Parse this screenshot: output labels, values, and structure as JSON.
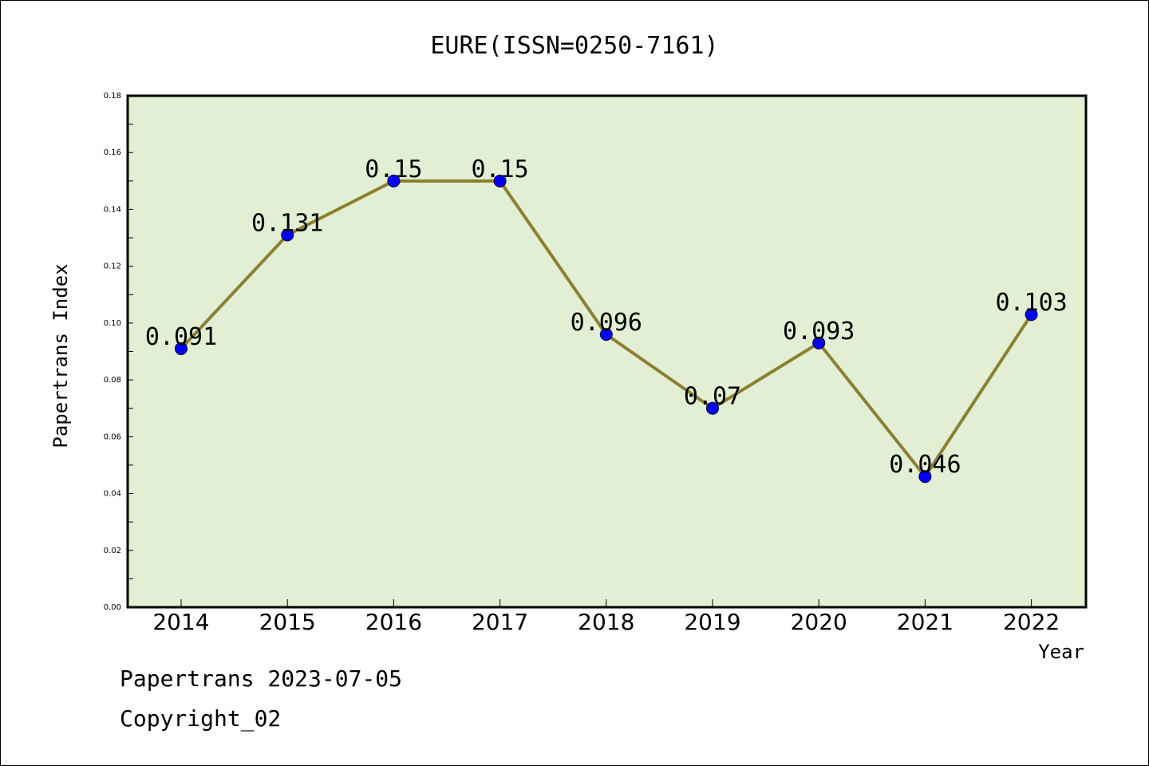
{
  "chart_data": {
    "type": "line",
    "title": "EURE(ISSN=0250-7161)",
    "xlabel": "Year",
    "ylabel": "Papertrans Index",
    "categories": [
      "2014",
      "2015",
      "2016",
      "2017",
      "2018",
      "2019",
      "2020",
      "2021",
      "2022"
    ],
    "values": [
      0.091,
      0.131,
      0.15,
      0.15,
      0.096,
      0.07,
      0.093,
      0.046,
      0.103
    ],
    "data_labels": [
      "0.091",
      "0.131",
      "0.15",
      "0.15",
      "0.096",
      "0.07",
      "0.093",
      "0.046",
      "0.103"
    ],
    "ylim": [
      0.0,
      0.18
    ],
    "yticks": [
      "0.00",
      "0.02",
      "0.04",
      "0.06",
      "0.08",
      "0.10",
      "0.12",
      "0.14",
      "0.16",
      "0.18"
    ],
    "ytick_values": [
      0,
      0.02,
      0.04,
      0.06,
      0.08,
      0.1,
      0.12,
      0.14,
      0.16,
      0.18
    ],
    "grid": false,
    "colors": {
      "plot_background": "#e2efd4",
      "line": "#8b8032",
      "marker": "#0000ff"
    }
  },
  "footer": {
    "stamp": "Papertrans 2023-07-05",
    "copyright": "Copyright_02"
  }
}
